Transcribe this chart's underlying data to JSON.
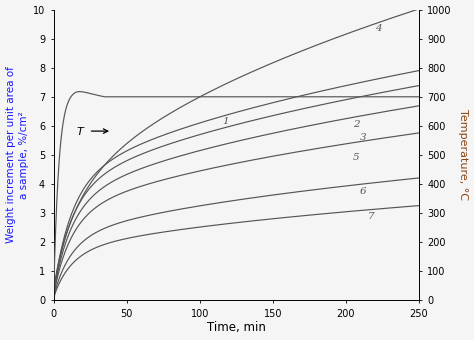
{
  "xlabel": "Time, min",
  "ylabel_left": "Weight increment per unit area of\na sample, %/cm²",
  "ylabel_right": "Temperature, °C",
  "xlim": [
    0,
    250
  ],
  "ylim_left": [
    0,
    10
  ],
  "ylim_right": [
    0,
    1000
  ],
  "xticks": [
    0,
    50,
    100,
    150,
    200,
    250
  ],
  "yticks_left": [
    0,
    1,
    2,
    3,
    4,
    5,
    6,
    7,
    8,
    9,
    10
  ],
  "yticks_right": [
    0,
    100,
    200,
    300,
    400,
    500,
    600,
    700,
    800,
    900,
    1000
  ],
  "curve_color": "#555555",
  "label_color_left": "#1a1aff",
  "label_color_right": "#8B4513",
  "background_color": "#f5f5f5",
  "label_4": [
    222,
    9.35
  ],
  "label_1": [
    118,
    6.15
  ],
  "label_2": [
    207,
    6.05
  ],
  "label_3": [
    212,
    5.6
  ],
  "label_5": [
    207,
    4.92
  ],
  "label_6": [
    212,
    3.73
  ],
  "label_7": [
    217,
    2.87
  ]
}
